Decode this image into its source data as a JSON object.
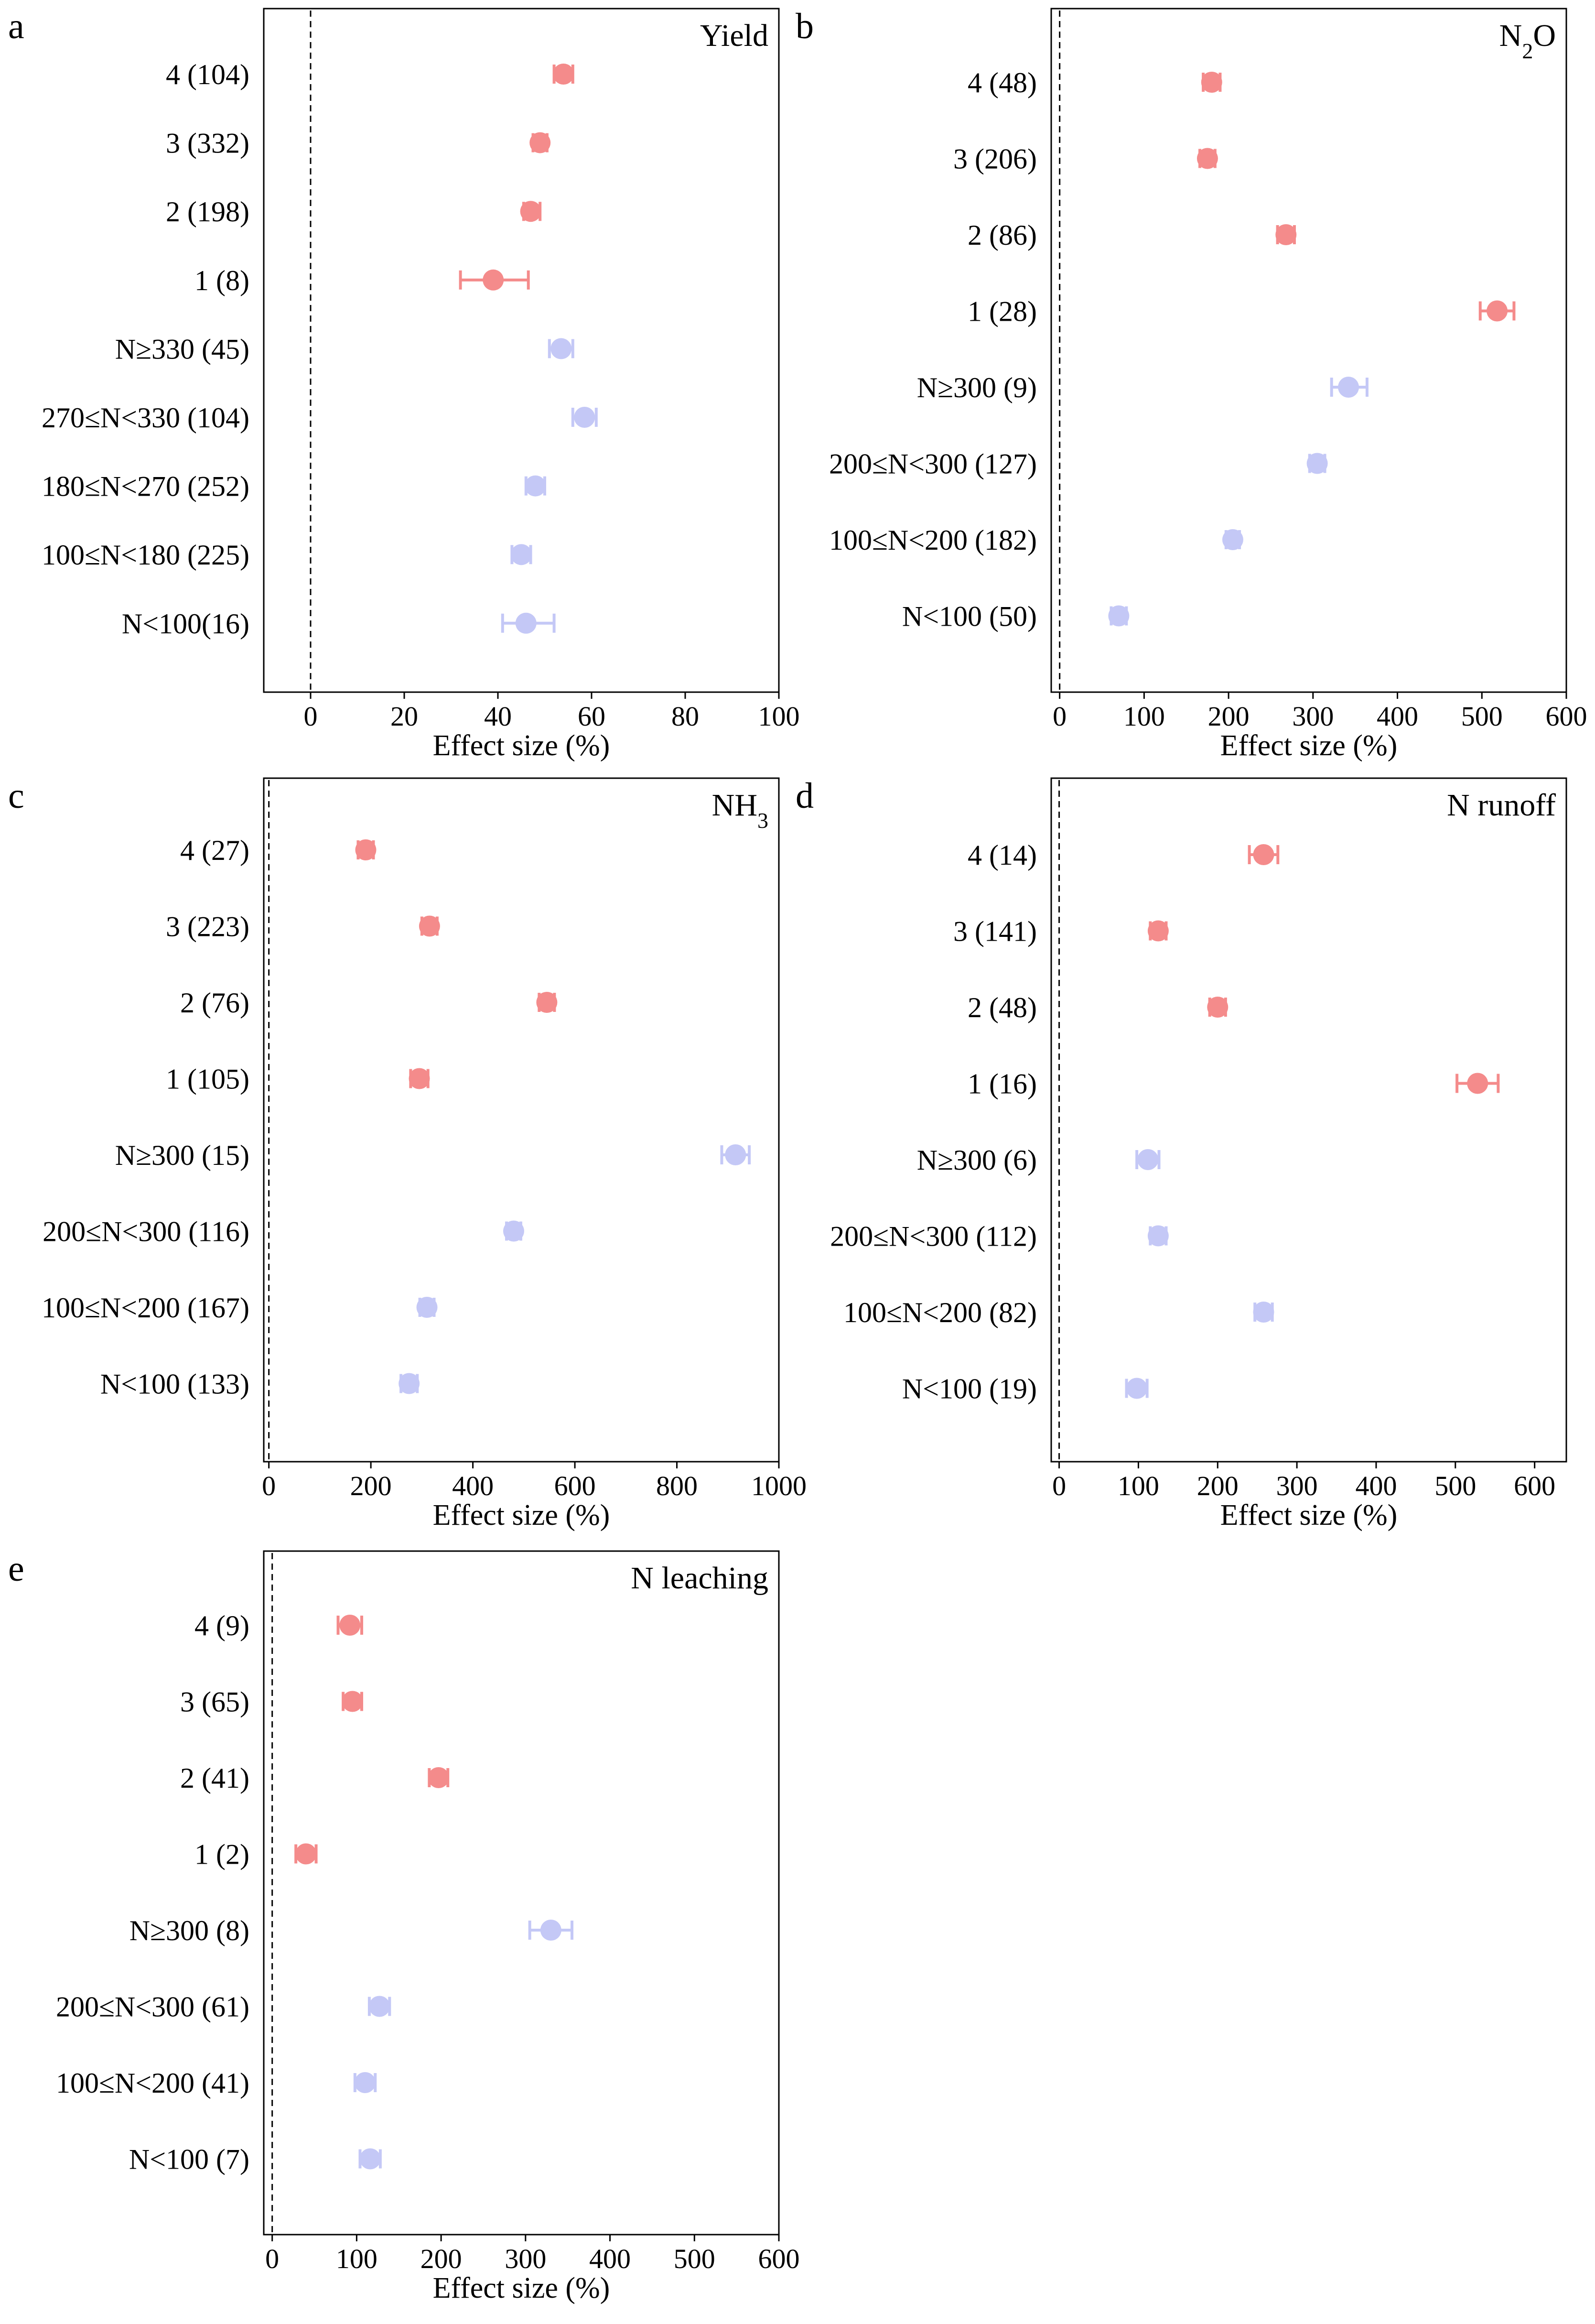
{
  "figure": {
    "x_axis_label": "Effect size (%)",
    "colors": {
      "application_times": "#f48b8b",
      "n_rate": "#c4c8f6",
      "axis": "#000000"
    }
  },
  "chart_data": [
    {
      "panel": "a",
      "type": "scatter",
      "title": "Yield",
      "xlabel": "Effect size (%)",
      "xlim": [
        -10,
        100
      ],
      "xticks": [
        0,
        20,
        40,
        60,
        80,
        100
      ],
      "categories": [
        "4 (104)",
        "3 (332)",
        "2 (198)",
        "1 (8)",
        "N≥330 (45)",
        "270≤N<330 (104)",
        "180≤N<270 (252)",
        "100≤N<180 (225)",
        "N<100(16)"
      ],
      "values": [
        54,
        49,
        47,
        39,
        53.5,
        58.5,
        48,
        45,
        46
      ],
      "ci_low": [
        52,
        47.5,
        45.5,
        32,
        51,
        56,
        46,
        43,
        41
      ],
      "ci_high": [
        56,
        50.5,
        49,
        46.5,
        56,
        61,
        50,
        47,
        52
      ],
      "groups": [
        "application_times",
        "application_times",
        "application_times",
        "application_times",
        "n_rate",
        "n_rate",
        "n_rate",
        "n_rate",
        "n_rate"
      ]
    },
    {
      "panel": "b",
      "type": "scatter",
      "title": "N",
      "title_subscript": "2",
      "title_suffix": "O",
      "xlabel": "Effect size (%)",
      "xlim": [
        -10,
        600
      ],
      "xticks": [
        0,
        100,
        200,
        300,
        400,
        500,
        600
      ],
      "categories": [
        "4 (48)",
        "3 (206)",
        "2 (86)",
        "1 (28)",
        "N≥300 (9)",
        "200≤N<300 (127)",
        "100≤N<200 (182)",
        "N<100 (50)"
      ],
      "values": [
        180,
        175,
        268,
        518,
        342,
        305,
        205,
        70
      ],
      "ci_low": [
        170,
        166,
        258,
        498,
        322,
        296,
        197,
        61
      ],
      "ci_high": [
        190,
        184,
        278,
        538,
        364,
        314,
        213,
        79
      ],
      "groups": [
        "application_times",
        "application_times",
        "application_times",
        "application_times",
        "n_rate",
        "n_rate",
        "n_rate",
        "n_rate"
      ]
    },
    {
      "panel": "c",
      "type": "scatter",
      "title": "NH",
      "title_subscript": "3",
      "title_suffix": "",
      "xlabel": "Effect size (%)",
      "xlim": [
        -10,
        1000
      ],
      "xticks": [
        0,
        200,
        400,
        600,
        800,
        1000
      ],
      "categories": [
        "4 (27)",
        "3 (223)",
        "2 (76)",
        "1 (105)",
        "N≥300 (15)",
        "200≤N<300 (116)",
        "100≤N<200 (167)",
        "N<100 (133)"
      ],
      "values": [
        190,
        315,
        545,
        295,
        915,
        480,
        310,
        275
      ],
      "ci_low": [
        175,
        300,
        530,
        278,
        888,
        466,
        296,
        259
      ],
      "ci_high": [
        205,
        330,
        560,
        312,
        942,
        494,
        324,
        291
      ],
      "groups": [
        "application_times",
        "application_times",
        "application_times",
        "application_times",
        "n_rate",
        "n_rate",
        "n_rate",
        "n_rate"
      ]
    },
    {
      "panel": "d",
      "type": "scatter",
      "title": "N runoff",
      "xlabel": "Effect size (%)",
      "xlim": [
        -10,
        640
      ],
      "xticks": [
        0,
        100,
        200,
        300,
        400,
        500,
        600
      ],
      "categories": [
        "4 (14)",
        "3 (141)",
        "2 (48)",
        "1 (16)",
        "N≥300 (6)",
        "200≤N<300 (112)",
        "100≤N<200 (82)",
        "N<100 (19)"
      ],
      "values": [
        258,
        125,
        200,
        528,
        112,
        125,
        258,
        98
      ],
      "ci_low": [
        240,
        115,
        190,
        502,
        98,
        115,
        247,
        85
      ],
      "ci_high": [
        276,
        135,
        210,
        554,
        126,
        135,
        269,
        111
      ],
      "groups": [
        "application_times",
        "application_times",
        "application_times",
        "application_times",
        "n_rate",
        "n_rate",
        "n_rate",
        "n_rate"
      ]
    },
    {
      "panel": "e",
      "type": "scatter",
      "title": "N leaching",
      "xlabel": "Effect size (%)",
      "xlim": [
        -10,
        600
      ],
      "xticks": [
        0,
        100,
        200,
        300,
        400,
        500,
        600
      ],
      "categories": [
        "4 (9)",
        "3 (65)",
        "2 (41)",
        "1 (2)",
        "N≥300 (8)",
        "200≤N<300 (61)",
        "100≤N<200 (41)",
        "N<100 (7)"
      ],
      "values": [
        92,
        95,
        197,
        40,
        330,
        127,
        110,
        116
      ],
      "ci_low": [
        78,
        84,
        186,
        28,
        305,
        115,
        98,
        104
      ],
      "ci_high": [
        106,
        106,
        208,
        52,
        355,
        139,
        122,
        128
      ],
      "groups": [
        "application_times",
        "application_times",
        "application_times",
        "application_times",
        "n_rate",
        "n_rate",
        "n_rate",
        "n_rate"
      ]
    }
  ]
}
